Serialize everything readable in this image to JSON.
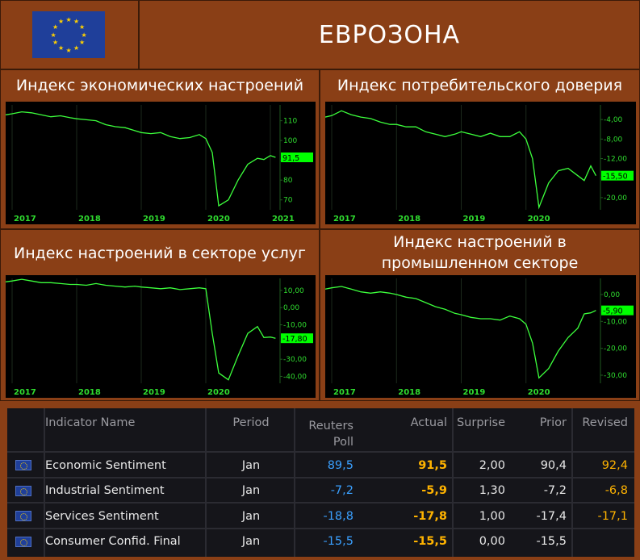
{
  "header": {
    "title": "ЕВРОЗОНА",
    "flag_icon": "eu-flag-icon"
  },
  "colors": {
    "background": "#8a3f16",
    "line": "#3cff3c",
    "last_label_bg": "#00ff00",
    "axis_text": "#2fdc2f",
    "poll": "#3aa0ff",
    "actual": "#ffb300",
    "revised": "#ffb300",
    "table_bg": "#15151a"
  },
  "chart_data": [
    {
      "type": "line",
      "title": "Индекс экономических настроений",
      "x_ticks": [
        "2017",
        "2018",
        "2019",
        "2020",
        "2021"
      ],
      "x_tick_pos": [
        2017,
        2018,
        2019,
        2020,
        2021
      ],
      "xlim": [
        2016.9,
        2021.15
      ],
      "ylim": [
        65,
        118
      ],
      "y_ticks": [
        70,
        80,
        90,
        100,
        110
      ],
      "y_tick_labels": [
        "70",
        "80",
        "",
        "100",
        "110"
      ],
      "last_value_label": "91,5",
      "last_value": 91.5,
      "x": [
        2016.9,
        2017.0,
        2017.15,
        2017.3,
        2017.45,
        2017.6,
        2017.75,
        2017.9,
        2018.0,
        2018.15,
        2018.3,
        2018.45,
        2018.6,
        2018.75,
        2018.9,
        2019.0,
        2019.15,
        2019.3,
        2019.45,
        2019.6,
        2019.75,
        2019.9,
        2020.0,
        2020.1,
        2020.2,
        2020.35,
        2020.5,
        2020.65,
        2020.8,
        2020.9,
        2021.0,
        2021.08
      ],
      "y": [
        113,
        113.5,
        114.5,
        114,
        113,
        112,
        112.5,
        111.5,
        111,
        110.5,
        110,
        108,
        107,
        106.5,
        105,
        104,
        103.5,
        104,
        102,
        101,
        101.5,
        103,
        101,
        94,
        67,
        70,
        80,
        88,
        91,
        90.4,
        92.4,
        91.5
      ]
    },
    {
      "type": "line",
      "title": "Индекс потребительского доверия",
      "x_ticks": [
        "2017",
        "2018",
        "2019",
        "2020"
      ],
      "x_tick_pos": [
        2017,
        2018,
        2019,
        2020
      ],
      "xlim": [
        2016.9,
        2021.15
      ],
      "ylim": [
        -22.5,
        -1
      ],
      "y_ticks": [
        -4,
        -8,
        -12,
        -16,
        -20
      ],
      "y_tick_labels": [
        "-4,00",
        "-8,00",
        "-12,00",
        "",
        "-20,00"
      ],
      "last_value_label": "-15,50",
      "last_value": -15.5,
      "x": [
        2016.9,
        2017.0,
        2017.15,
        2017.3,
        2017.45,
        2017.6,
        2017.75,
        2017.9,
        2018.0,
        2018.15,
        2018.3,
        2018.45,
        2018.6,
        2018.75,
        2018.9,
        2019.0,
        2019.15,
        2019.3,
        2019.45,
        2019.6,
        2019.75,
        2019.9,
        2020.0,
        2020.1,
        2020.2,
        2020.35,
        2020.5,
        2020.65,
        2020.8,
        2020.9,
        2021.0,
        2021.08
      ],
      "y": [
        -3.5,
        -3.2,
        -2.2,
        -3.0,
        -3.5,
        -3.8,
        -4.5,
        -5.0,
        -5.0,
        -5.5,
        -5.5,
        -6.5,
        -7.0,
        -7.5,
        -7.0,
        -6.5,
        -7.0,
        -7.5,
        -6.8,
        -7.5,
        -7.5,
        -6.5,
        -8.0,
        -12.0,
        -22.0,
        -17.0,
        -14.5,
        -14.0,
        -15.5,
        -16.5,
        -13.5,
        -15.5
      ]
    },
    {
      "type": "line",
      "title": "Индекс настроений в секторе услуг",
      "x_ticks": [
        "2017",
        "2018",
        "2019",
        "2020"
      ],
      "x_tick_pos": [
        2017,
        2018,
        2019,
        2020
      ],
      "xlim": [
        2016.9,
        2021.15
      ],
      "ylim": [
        -44,
        17
      ],
      "y_ticks": [
        10,
        0,
        -10,
        -20,
        -30,
        -40
      ],
      "y_tick_labels": [
        "10,00",
        "0,00",
        "-10,00",
        "",
        "-30,00",
        "-40,00"
      ],
      "last_value_label": "-17,80",
      "last_value": -17.8,
      "x": [
        2016.9,
        2017.0,
        2017.15,
        2017.3,
        2017.45,
        2017.6,
        2017.75,
        2017.9,
        2018.0,
        2018.15,
        2018.3,
        2018.45,
        2018.6,
        2018.75,
        2018.9,
        2019.0,
        2019.15,
        2019.3,
        2019.45,
        2019.6,
        2019.75,
        2019.9,
        2020.0,
        2020.1,
        2020.2,
        2020.35,
        2020.5,
        2020.65,
        2020.8,
        2020.9,
        2021.0,
        2021.08
      ],
      "y": [
        15,
        15.5,
        16.5,
        15.5,
        14.5,
        14.5,
        14.0,
        13.5,
        13.5,
        13.0,
        14.0,
        13.0,
        12.5,
        12.0,
        12.5,
        12.0,
        11.5,
        11.0,
        11.5,
        10.5,
        11.0,
        11.5,
        11.0,
        -15,
        -38,
        -42,
        -28,
        -15,
        -11,
        -17.4,
        -17.1,
        -17.8
      ]
    },
    {
      "type": "line",
      "title": "Индекс настроений в промышленном секторе",
      "x_ticks": [
        "2017",
        "2018",
        "2019",
        "2020"
      ],
      "x_tick_pos": [
        2017,
        2018,
        2019,
        2020
      ],
      "xlim": [
        2016.9,
        2021.15
      ],
      "ylim": [
        -33,
        6
      ],
      "y_ticks": [
        0,
        -10,
        -20,
        -30
      ],
      "y_tick_labels": [
        "0,00",
        "-10,00",
        "-20,00",
        "-30,00"
      ],
      "last_value_label": "-5,90",
      "last_value": -5.9,
      "x": [
        2016.9,
        2017.0,
        2017.15,
        2017.3,
        2017.45,
        2017.6,
        2017.75,
        2017.9,
        2018.0,
        2018.15,
        2018.3,
        2018.45,
        2018.6,
        2018.75,
        2018.9,
        2019.0,
        2019.15,
        2019.3,
        2019.45,
        2019.6,
        2019.75,
        2019.9,
        2020.0,
        2020.1,
        2020.2,
        2020.35,
        2020.5,
        2020.65,
        2020.8,
        2020.9,
        2021.0,
        2021.08
      ],
      "y": [
        2.0,
        2.5,
        3.0,
        2.0,
        1.0,
        0.5,
        1.0,
        0.5,
        0.0,
        -1.0,
        -1.5,
        -3.0,
        -4.5,
        -5.5,
        -7.0,
        -7.5,
        -8.5,
        -9.0,
        -9.0,
        -9.5,
        -8.0,
        -9.0,
        -11.0,
        -18.0,
        -31.0,
        -27.5,
        -21.0,
        -16.0,
        -12.5,
        -7.2,
        -6.8,
        -5.9
      ]
    }
  ],
  "table": {
    "headers": {
      "name": "Indicator Name",
      "period": "Period",
      "poll_line1": "Reuters",
      "poll_line2": "Poll",
      "actual": "Actual",
      "surprise": "Surprise",
      "prior": "Prior",
      "revised": "Revised"
    },
    "rows": [
      {
        "flag_icon": "eu-flag-icon",
        "name": "Economic Sentiment",
        "period": "Jan",
        "poll": "89,5",
        "actual": "91,5",
        "surprise": "2,00",
        "prior": "90,4",
        "revised": "92,4"
      },
      {
        "flag_icon": "eu-flag-icon",
        "name": "Industrial Sentiment",
        "period": "Jan",
        "poll": "-7,2",
        "actual": "-5,9",
        "surprise": "1,30",
        "prior": "-7,2",
        "revised": "-6,8"
      },
      {
        "flag_icon": "eu-flag-icon",
        "name": "Services Sentiment",
        "period": "Jan",
        "poll": "-18,8",
        "actual": "-17,8",
        "surprise": "1,00",
        "prior": "-17,4",
        "revised": "-17,1"
      },
      {
        "flag_icon": "eu-flag-icon",
        "name": "Consumer Confid. Final",
        "period": "Jan",
        "poll": "-15,5",
        "actual": "-15,5",
        "surprise": "0,00",
        "prior": "-15,5",
        "revised": ""
      }
    ]
  }
}
